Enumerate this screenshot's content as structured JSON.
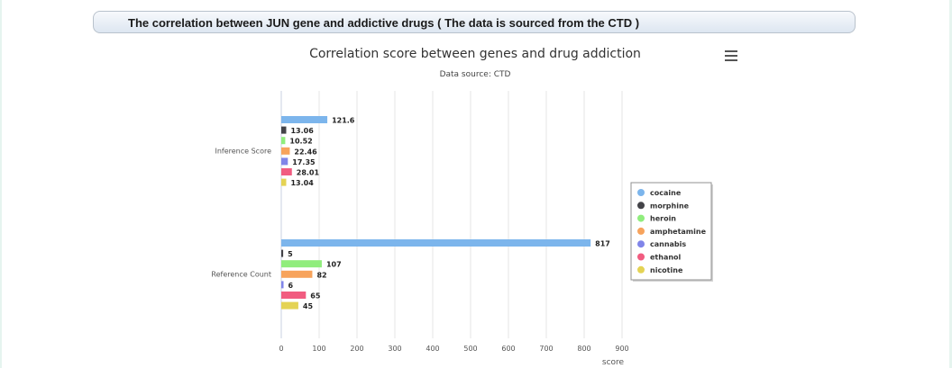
{
  "header": {
    "title": "The correlation between JUN gene and addictive drugs ( The data is sourced from the CTD )"
  },
  "chart_data": {
    "type": "bar",
    "orientation": "horizontal",
    "title": "Correlation score between genes and drug addiction",
    "subtitle": "Data source: CTD",
    "categories": [
      "Inference Score",
      "Reference Count"
    ],
    "xlabel": "score",
    "xlim": [
      0,
      900
    ],
    "xticks": [
      0,
      100,
      200,
      300,
      400,
      500,
      600,
      700,
      800,
      900
    ],
    "grid": true,
    "legend_position": "right",
    "series": [
      {
        "name": "cocaine",
        "color": "#7cb5ec",
        "values": [
          121.6,
          817
        ],
        "labels": [
          "121.6",
          "817"
        ]
      },
      {
        "name": "morphine",
        "color": "#434348",
        "values": [
          13.06,
          5
        ],
        "labels": [
          "13.06",
          "5"
        ]
      },
      {
        "name": "heroin",
        "color": "#90ed7d",
        "values": [
          10.52,
          107
        ],
        "labels": [
          "10.52",
          "107"
        ]
      },
      {
        "name": "amphetamine",
        "color": "#f7a35c",
        "values": [
          22.46,
          82
        ],
        "labels": [
          "22.46",
          "82"
        ]
      },
      {
        "name": "cannabis",
        "color": "#8085e9",
        "values": [
          17.35,
          6
        ],
        "labels": [
          "17.35",
          "6"
        ]
      },
      {
        "name": "ethanol",
        "color": "#f15c80",
        "values": [
          28.01,
          65
        ],
        "labels": [
          "28.01",
          "65"
        ]
      },
      {
        "name": "nicotine",
        "color": "#e4d354",
        "values": [
          13.04,
          45
        ],
        "labels": [
          "13.04",
          "45"
        ]
      }
    ]
  }
}
